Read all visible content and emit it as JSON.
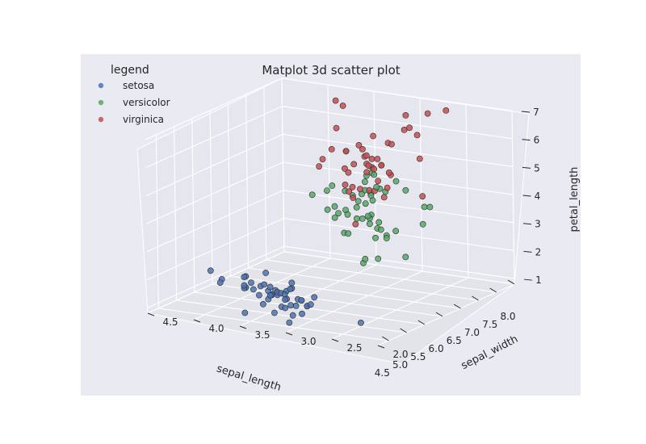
{
  "chart_data": {
    "type": "scatter",
    "title": "Matplot 3d scatter plot",
    "xlabel": "sepal_length",
    "ylabel": "sepal_width",
    "zlabel": "petal_length",
    "x_ticks": [
      "4.5",
      "5.0",
      "5.5",
      "6.0",
      "6.5",
      "7.0",
      "7.5",
      "8.0"
    ],
    "y_ticks": [
      "2.0",
      "2.5",
      "3.0",
      "3.5",
      "4.0",
      "4.5"
    ],
    "z_ticks": [
      "1",
      "2",
      "3",
      "4",
      "5",
      "6",
      "7"
    ],
    "xlim": [
      4.2,
      8.0
    ],
    "ylim": [
      2.0,
      4.5
    ],
    "zlim": [
      0.8,
      7.0
    ],
    "grid": true,
    "legend": {
      "title": "legend",
      "position": "top-left"
    },
    "colors": {
      "background": "#eaeaf2",
      "pane": "#e8e8ee",
      "grid": "#ffffff"
    },
    "series": [
      {
        "name": "setosa",
        "color": "#4c72b0",
        "points": [
          [
            5.1,
            3.5,
            1.4
          ],
          [
            4.9,
            3.0,
            1.4
          ],
          [
            4.7,
            3.2,
            1.3
          ],
          [
            4.6,
            3.1,
            1.5
          ],
          [
            5.0,
            3.6,
            1.4
          ],
          [
            5.4,
            3.9,
            1.7
          ],
          [
            4.6,
            3.4,
            1.4
          ],
          [
            5.0,
            3.4,
            1.5
          ],
          [
            4.4,
            2.9,
            1.4
          ],
          [
            4.9,
            3.1,
            1.5
          ],
          [
            5.4,
            3.7,
            1.5
          ],
          [
            4.8,
            3.4,
            1.6
          ],
          [
            4.8,
            3.0,
            1.4
          ],
          [
            4.3,
            3.0,
            1.1
          ],
          [
            5.8,
            4.0,
            1.2
          ],
          [
            5.7,
            4.4,
            1.5
          ],
          [
            5.4,
            3.9,
            1.3
          ],
          [
            5.1,
            3.5,
            1.4
          ],
          [
            5.7,
            3.8,
            1.7
          ],
          [
            5.1,
            3.8,
            1.5
          ],
          [
            5.4,
            3.4,
            1.7
          ],
          [
            5.1,
            3.7,
            1.5
          ],
          [
            4.6,
            3.6,
            1.0
          ],
          [
            5.1,
            3.3,
            1.7
          ],
          [
            4.8,
            3.4,
            1.9
          ],
          [
            5.0,
            3.0,
            1.6
          ],
          [
            5.0,
            3.4,
            1.6
          ],
          [
            5.2,
            3.5,
            1.5
          ],
          [
            5.2,
            3.4,
            1.4
          ],
          [
            4.7,
            3.2,
            1.6
          ],
          [
            4.8,
            3.1,
            1.6
          ],
          [
            5.4,
            3.4,
            1.5
          ],
          [
            5.2,
            4.1,
            1.5
          ],
          [
            5.5,
            4.2,
            1.4
          ],
          [
            4.9,
            3.1,
            1.5
          ],
          [
            5.0,
            3.2,
            1.2
          ],
          [
            5.5,
            3.5,
            1.3
          ],
          [
            4.4,
            3.0,
            1.3
          ],
          [
            5.1,
            3.4,
            1.5
          ],
          [
            5.0,
            3.5,
            1.3
          ],
          [
            4.5,
            2.3,
            1.3
          ],
          [
            4.4,
            3.2,
            1.3
          ],
          [
            5.0,
            3.5,
            1.6
          ],
          [
            5.1,
            3.8,
            1.9
          ],
          [
            4.8,
            3.0,
            1.4
          ],
          [
            5.1,
            3.8,
            1.6
          ],
          [
            4.6,
            3.2,
            1.4
          ],
          [
            5.3,
            3.7,
            1.5
          ],
          [
            5.0,
            3.3,
            1.4
          ]
        ]
      },
      {
        "name": "versicolor",
        "color": "#55a868",
        "points": [
          [
            7.0,
            3.2,
            4.7
          ],
          [
            6.4,
            3.2,
            4.5
          ],
          [
            6.9,
            3.1,
            4.9
          ],
          [
            5.5,
            2.3,
            4.0
          ],
          [
            6.5,
            2.8,
            4.6
          ],
          [
            5.7,
            2.8,
            4.5
          ],
          [
            6.3,
            3.3,
            4.7
          ],
          [
            4.9,
            2.4,
            3.3
          ],
          [
            6.6,
            2.9,
            4.6
          ],
          [
            5.2,
            2.7,
            3.9
          ],
          [
            5.0,
            2.0,
            3.5
          ],
          [
            5.9,
            3.0,
            4.2
          ],
          [
            6.0,
            2.2,
            4.0
          ],
          [
            6.1,
            2.9,
            4.7
          ],
          [
            5.6,
            2.9,
            3.6
          ],
          [
            6.7,
            3.1,
            4.4
          ],
          [
            5.6,
            3.0,
            4.5
          ],
          [
            5.8,
            2.7,
            4.1
          ],
          [
            6.2,
            2.2,
            4.5
          ],
          [
            5.6,
            2.5,
            3.9
          ],
          [
            5.9,
            3.2,
            4.8
          ],
          [
            6.1,
            2.8,
            4.0
          ],
          [
            6.3,
            2.5,
            4.9
          ],
          [
            6.1,
            2.8,
            4.7
          ],
          [
            6.4,
            2.9,
            4.3
          ],
          [
            6.6,
            3.0,
            4.4
          ],
          [
            6.8,
            2.8,
            4.8
          ],
          [
            6.7,
            3.0,
            5.0
          ],
          [
            6.0,
            2.9,
            4.5
          ],
          [
            5.7,
            2.6,
            3.5
          ],
          [
            5.5,
            2.4,
            3.8
          ],
          [
            5.5,
            2.4,
            3.7
          ],
          [
            5.8,
            2.7,
            3.9
          ],
          [
            6.0,
            2.7,
            5.1
          ],
          [
            5.4,
            3.0,
            4.5
          ],
          [
            6.0,
            3.4,
            4.5
          ],
          [
            6.7,
            3.1,
            4.7
          ],
          [
            6.3,
            2.3,
            4.4
          ],
          [
            5.6,
            3.0,
            4.1
          ],
          [
            5.5,
            2.5,
            4.0
          ],
          [
            5.5,
            2.6,
            4.4
          ],
          [
            6.1,
            3.0,
            4.6
          ],
          [
            5.8,
            2.6,
            4.0
          ],
          [
            5.0,
            2.3,
            3.3
          ],
          [
            5.6,
            2.7,
            4.2
          ],
          [
            5.7,
            3.0,
            4.2
          ],
          [
            5.7,
            2.9,
            4.2
          ],
          [
            6.2,
            2.9,
            4.3
          ],
          [
            5.1,
            2.5,
            3.0
          ],
          [
            5.7,
            2.8,
            4.1
          ]
        ]
      },
      {
        "name": "virginica",
        "color": "#c44e52",
        "points": [
          [
            6.3,
            3.3,
            6.0
          ],
          [
            5.8,
            2.7,
            5.1
          ],
          [
            7.1,
            3.0,
            5.9
          ],
          [
            6.3,
            2.9,
            5.6
          ],
          [
            6.5,
            3.0,
            5.8
          ],
          [
            7.6,
            3.0,
            6.6
          ],
          [
            4.9,
            2.5,
            4.5
          ],
          [
            7.3,
            2.9,
            6.3
          ],
          [
            6.7,
            2.5,
            5.8
          ],
          [
            7.2,
            3.6,
            6.1
          ],
          [
            6.5,
            3.2,
            5.1
          ],
          [
            6.4,
            2.7,
            5.3
          ],
          [
            6.8,
            3.0,
            5.5
          ],
          [
            5.7,
            2.5,
            5.0
          ],
          [
            5.8,
            2.8,
            5.1
          ],
          [
            6.4,
            3.2,
            5.3
          ],
          [
            6.5,
            3.0,
            5.5
          ],
          [
            7.7,
            3.8,
            6.7
          ],
          [
            7.7,
            2.6,
            6.9
          ],
          [
            6.0,
            2.2,
            5.0
          ],
          [
            6.9,
            3.2,
            5.7
          ],
          [
            5.6,
            2.8,
            4.9
          ],
          [
            7.7,
            2.8,
            6.7
          ],
          [
            6.3,
            2.7,
            4.9
          ],
          [
            6.7,
            3.3,
            5.7
          ],
          [
            7.2,
            3.2,
            6.0
          ],
          [
            6.2,
            2.8,
            4.8
          ],
          [
            6.1,
            3.0,
            4.9
          ],
          [
            6.4,
            2.8,
            5.6
          ],
          [
            7.2,
            3.0,
            5.8
          ],
          [
            7.4,
            2.8,
            6.1
          ],
          [
            7.9,
            3.8,
            6.4
          ],
          [
            6.4,
            2.8,
            5.6
          ],
          [
            6.3,
            2.8,
            5.1
          ],
          [
            6.1,
            2.6,
            5.6
          ],
          [
            7.7,
            3.0,
            6.1
          ],
          [
            6.3,
            3.4,
            5.6
          ],
          [
            6.4,
            3.1,
            5.5
          ],
          [
            6.0,
            3.0,
            4.8
          ],
          [
            6.9,
            3.1,
            5.4
          ],
          [
            6.7,
            3.1,
            5.6
          ],
          [
            6.9,
            3.1,
            5.1
          ],
          [
            6.8,
            3.2,
            5.9
          ],
          [
            6.7,
            3.3,
            5.7
          ],
          [
            6.7,
            3.0,
            5.2
          ],
          [
            6.5,
            3.0,
            5.2
          ],
          [
            6.2,
            3.4,
            5.4
          ],
          [
            5.9,
            3.0,
            5.1
          ]
        ]
      }
    ]
  }
}
